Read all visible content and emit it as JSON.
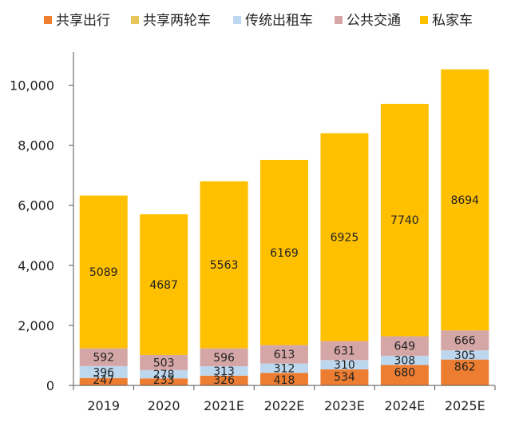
{
  "chart_data": {
    "type": "bar",
    "stacked": true,
    "categories": [
      "2019",
      "2020",
      "2021E",
      "2022E",
      "2023E",
      "2024E",
      "2025E"
    ],
    "series": [
      {
        "name": "共享出行",
        "color": "#ED7D31",
        "values": [
          247,
          233,
          326,
          418,
          534,
          680,
          862
        ]
      },
      {
        "name": "共享两轮车",
        "color": "#E6C55A",
        "values": [
          0,
          0,
          0,
          0,
          0,
          0,
          0
        ]
      },
      {
        "name": "传统出租车",
        "color": "#BDD7EE",
        "values": [
          396,
          278,
          313,
          312,
          310,
          308,
          305
        ]
      },
      {
        "name": "公共交通",
        "color": "#D5A6A6",
        "values": [
          592,
          503,
          596,
          613,
          631,
          649,
          666
        ]
      },
      {
        "name": "私家车",
        "color": "#FFC000",
        "values": [
          5089,
          4687,
          5563,
          6169,
          6925,
          7740,
          8694
        ]
      }
    ],
    "yticks": [
      "0",
      "2,000",
      "4,000",
      "6,000",
      "8,000",
      "10,000"
    ],
    "ytick_values": [
      0,
      2000,
      4000,
      6000,
      8000,
      10000
    ],
    "ylim": [
      0,
      10600
    ],
    "title": "",
    "xlabel": "",
    "ylabel": "",
    "legend_position": "top",
    "grid": false
  }
}
